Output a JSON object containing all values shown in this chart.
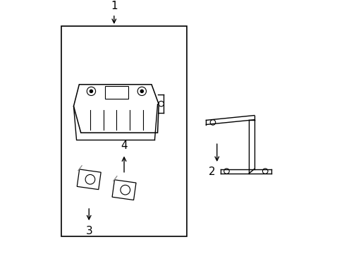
{
  "background_color": "#ffffff",
  "line_color": "#000000",
  "gray_color": "#888888",
  "label_1": "1",
  "label_2": "2",
  "label_3": "3",
  "label_4": "4",
  "font_size_labels": 11
}
